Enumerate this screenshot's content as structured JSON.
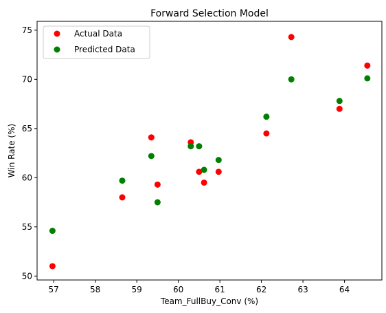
{
  "chart_data": {
    "type": "scatter",
    "title": "Forward Selection Model",
    "xlabel": "Team_FullBuy_Conv (%)",
    "ylabel": "Win Rate (%)",
    "xlim": [
      56.6,
      64.9
    ],
    "ylim": [
      49.6,
      75.9
    ],
    "xticks": [
      57,
      58,
      59,
      60,
      61,
      62,
      63,
      64
    ],
    "yticks": [
      50,
      55,
      60,
      65,
      70,
      75
    ],
    "grid": false,
    "legend": "top-left",
    "series": [
      {
        "name": "Actual Data",
        "color": "#ff0000",
        "points": [
          [
            56.97,
            51.0
          ],
          [
            58.65,
            58.0
          ],
          [
            59.35,
            64.1
          ],
          [
            59.5,
            59.3
          ],
          [
            60.3,
            63.6
          ],
          [
            60.5,
            60.6
          ],
          [
            60.62,
            59.5
          ],
          [
            60.97,
            60.6
          ],
          [
            62.12,
            64.5
          ],
          [
            62.72,
            74.3
          ],
          [
            63.88,
            67.0
          ],
          [
            64.55,
            71.4
          ]
        ]
      },
      {
        "name": "Predicted Data",
        "color": "#008000",
        "points": [
          [
            56.97,
            54.6
          ],
          [
            58.65,
            59.7
          ],
          [
            59.35,
            62.2
          ],
          [
            59.5,
            57.5
          ],
          [
            60.3,
            63.2
          ],
          [
            60.5,
            63.2
          ],
          [
            60.62,
            60.8
          ],
          [
            60.97,
            61.8
          ],
          [
            62.12,
            66.2
          ],
          [
            62.72,
            70.0
          ],
          [
            63.88,
            67.8
          ],
          [
            64.55,
            70.1
          ]
        ]
      }
    ]
  }
}
